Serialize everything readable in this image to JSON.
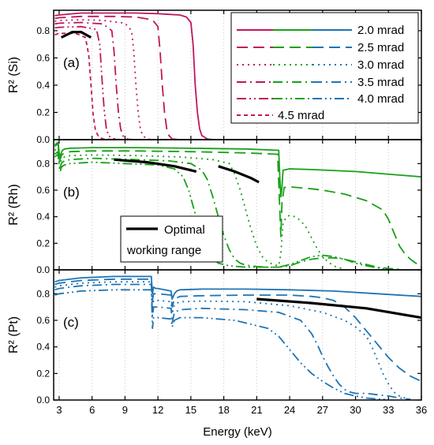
{
  "chart_data": {
    "type": "line",
    "xlabel": "Energy (keV)",
    "xlim": [
      2.5,
      36
    ],
    "xticks": [
      3,
      6,
      9,
      12,
      15,
      18,
      21,
      24,
      27,
      30,
      33,
      36
    ],
    "grid_x": true,
    "grid_y": false,
    "colors": {
      "Si": "#c0175d",
      "Rh": "#18a018",
      "Pt": "#1f74b4",
      "optimal": "#000000"
    },
    "legend": {
      "placement": "panel-a top-right",
      "entries": [
        "2.0 mrad",
        "2.5 mrad",
        "3.0 mrad",
        "3.5 mrad",
        "4.0 mrad",
        "4.5 mrad"
      ],
      "optimal_label_line1": "Optimal",
      "optimal_label_line2": "working range"
    },
    "panels": [
      {
        "label": "(a)",
        "ylabel": "R² (Si)",
        "ylim": [
          0,
          0.95
        ],
        "yticks": [
          0.0,
          0.2,
          0.4,
          0.6,
          0.8
        ],
        "color": "#c0175d",
        "series": [
          {
            "name": "2.0 mrad",
            "dash": "solid",
            "x": [
              2.6,
              3,
              5,
              8,
              10,
              12,
              13,
              14,
              14.6,
              15.0,
              15.2,
              15.4,
              15.6,
              15.8,
              16.0,
              16.5,
              17,
              20,
              36
            ],
            "y": [
              0.91,
              0.915,
              0.93,
              0.93,
              0.93,
              0.925,
              0.92,
              0.915,
              0.9,
              0.86,
              0.7,
              0.4,
              0.2,
              0.08,
              0.03,
              0.005,
              0,
              0,
              0
            ]
          },
          {
            "name": "2.5 mrad",
            "dash": "dash",
            "x": [
              2.6,
              3,
              5,
              8,
              10,
              11.5,
              12.0,
              12.2,
              12.4,
              12.6,
              12.8,
              13.0,
              13.3,
              14,
              36
            ],
            "y": [
              0.89,
              0.895,
              0.905,
              0.905,
              0.9,
              0.88,
              0.83,
              0.65,
              0.4,
              0.2,
              0.08,
              0.03,
              0.005,
              0,
              0
            ]
          },
          {
            "name": "3.0 mrad",
            "dash": "dot",
            "x": [
              2.6,
              3,
              5,
              7,
              9.0,
              9.6,
              9.8,
              10.0,
              10.2,
              10.4,
              10.6,
              11.0,
              11.5,
              36
            ],
            "y": [
              0.87,
              0.875,
              0.88,
              0.875,
              0.855,
              0.8,
              0.65,
              0.4,
              0.2,
              0.08,
              0.03,
              0.005,
              0,
              0
            ]
          },
          {
            "name": "3.5 mrad",
            "dash": "dashdot",
            "x": [
              2.6,
              3,
              5,
              7,
              7.8,
              8.0,
              8.2,
              8.4,
              8.6,
              8.8,
              9.0,
              9.4,
              10,
              36
            ],
            "y": [
              0.85,
              0.855,
              0.86,
              0.85,
              0.8,
              0.65,
              0.4,
              0.2,
              0.08,
              0.03,
              0.01,
              0.002,
              0,
              0
            ]
          },
          {
            "name": "4.0 mrad",
            "dash": "dashdotdot",
            "x": [
              2.6,
              3,
              5,
              6.4,
              6.7,
              6.9,
              7.1,
              7.3,
              7.5,
              7.8,
              8.2,
              9,
              36
            ],
            "y": [
              0.82,
              0.825,
              0.83,
              0.81,
              0.7,
              0.45,
              0.22,
              0.08,
              0.03,
              0.01,
              0.002,
              0,
              0
            ]
          },
          {
            "name": "4.5 mrad",
            "dash": "shortdash",
            "x": [
              2.6,
              3,
              4.5,
              5.4,
              5.7,
              5.9,
              6.1,
              6.3,
              6.6,
              7.0,
              8,
              36
            ],
            "y": [
              0.77,
              0.78,
              0.78,
              0.75,
              0.62,
              0.4,
              0.18,
              0.07,
              0.02,
              0.005,
              0,
              0
            ]
          }
        ],
        "optimal": [
          {
            "x": [
              3.2,
              4.2,
              5.0,
              5.9
            ],
            "y": [
              0.75,
              0.79,
              0.79,
              0.75
            ]
          }
        ]
      },
      {
        "label": "(b)",
        "ylabel": "R² (Rh)",
        "ylim": [
          0,
          0.98
        ],
        "yticks": [
          0.0,
          0.2,
          0.4,
          0.6,
          0.8
        ],
        "color": "#18a018",
        "series": [
          {
            "name": "2.0 mrad",
            "dash": "solid",
            "x": [
              2.6,
              2.9,
              3.0,
              3.1,
              3.2,
              3.3,
              3.5,
              4,
              6,
              10,
              15,
              20,
              23.0,
              23.1,
              23.2,
              23.3,
              23.4,
              24,
              26,
              30,
              36
            ],
            "y": [
              0.94,
              0.96,
              0.88,
              0.85,
              0.88,
              0.9,
              0.91,
              0.915,
              0.92,
              0.92,
              0.915,
              0.91,
              0.9,
              0.7,
              0.55,
              0.62,
              0.75,
              0.76,
              0.755,
              0.74,
              0.7
            ]
          },
          {
            "name": "2.5 mrad",
            "dash": "dash",
            "x": [
              2.6,
              2.9,
              3.0,
              3.1,
              3.2,
              3.3,
              3.5,
              4,
              6,
              10,
              15,
              20,
              22.9,
              23.1,
              23.2,
              23.3,
              23.5,
              24,
              26,
              27,
              29,
              31,
              32.5,
              33,
              33.5,
              34,
              34.5,
              35,
              35.5,
              36
            ],
            "y": [
              0.93,
              0.95,
              0.86,
              0.83,
              0.86,
              0.87,
              0.88,
              0.89,
              0.895,
              0.895,
              0.89,
              0.88,
              0.87,
              0.45,
              0.25,
              0.5,
              0.62,
              0.625,
              0.61,
              0.6,
              0.57,
              0.52,
              0.45,
              0.38,
              0.28,
              0.18,
              0.12,
              0.08,
              0.05,
              0.03
            ]
          },
          {
            "name": "3.0 mrad",
            "dash": "dot",
            "x": [
              2.6,
              2.9,
              3.0,
              3.1,
              3.2,
              3.3,
              3.5,
              4,
              6,
              10,
              14,
              17,
              18.5,
              19.0,
              19.5,
              20.0,
              20.5,
              21.0,
              21.5,
              22,
              22.5,
              23,
              23.2,
              23.4,
              23.7,
              24,
              24.5,
              25,
              25.5,
              26,
              26.5,
              27,
              27.5,
              28,
              28.5,
              29
            ],
            "y": [
              0.9,
              0.92,
              0.84,
              0.8,
              0.83,
              0.84,
              0.85,
              0.86,
              0.865,
              0.86,
              0.85,
              0.83,
              0.8,
              0.72,
              0.6,
              0.45,
              0.3,
              0.18,
              0.1,
              0.06,
              0.04,
              0.03,
              0.12,
              0.35,
              0.4,
              0.41,
              0.4,
              0.37,
              0.32,
              0.24,
              0.16,
              0.1,
              0.06,
              0.03,
              0.015,
              0.01
            ]
          },
          {
            "name": "3.5 mrad",
            "dash": "dashdot",
            "x": [
              2.6,
              2.9,
              3.0,
              3.1,
              3.2,
              3.3,
              3.5,
              4,
              6,
              10,
              13,
              15,
              16.0,
              16.5,
              17.0,
              17.5,
              18.0,
              18.5,
              19,
              19.5,
              20,
              21,
              22,
              23,
              24,
              25,
              26,
              27,
              28,
              29,
              30,
              31,
              32,
              33,
              34
            ],
            "y": [
              0.87,
              0.89,
              0.81,
              0.77,
              0.8,
              0.81,
              0.82,
              0.83,
              0.84,
              0.83,
              0.82,
              0.8,
              0.75,
              0.68,
              0.55,
              0.4,
              0.26,
              0.15,
              0.08,
              0.05,
              0.035,
              0.025,
              0.02,
              0.02,
              0.03,
              0.06,
              0.08,
              0.09,
              0.09,
              0.08,
              0.06,
              0.04,
              0.02,
              0.01,
              0.005
            ]
          },
          {
            "name": "4.0 mrad",
            "dash": "dashdotdot",
            "x": [
              2.6,
              2.9,
              3.0,
              3.1,
              3.2,
              3.3,
              3.5,
              4,
              6,
              9,
              12,
              13.5,
              14.3,
              14.8,
              15.3,
              15.8,
              16.3,
              16.8,
              17.5,
              18.5,
              20,
              22,
              23,
              24,
              25,
              26,
              27,
              28,
              29,
              30,
              31,
              32,
              33
            ],
            "y": [
              0.85,
              0.87,
              0.78,
              0.74,
              0.77,
              0.78,
              0.79,
              0.8,
              0.81,
              0.8,
              0.79,
              0.76,
              0.7,
              0.6,
              0.45,
              0.3,
              0.18,
              0.1,
              0.05,
              0.03,
              0.02,
              0.02,
              0.02,
              0.04,
              0.07,
              0.1,
              0.11,
              0.1,
              0.08,
              0.05,
              0.03,
              0.015,
              0.005
            ]
          }
        ],
        "optimal": [
          {
            "x": [
              8,
              11,
              13.5,
              15.5
            ],
            "y": [
              0.83,
              0.81,
              0.78,
              0.74
            ]
          },
          {
            "x": [
              17.5,
              19,
              20.5,
              21.2
            ],
            "y": [
              0.78,
              0.74,
              0.69,
              0.66
            ]
          }
        ]
      },
      {
        "label": "(c)",
        "ylabel": "R² (Pt)",
        "ylim": [
          0,
          0.98
        ],
        "yticks": [
          0.0,
          0.2,
          0.4,
          0.6,
          0.8
        ],
        "color": "#1f74b4",
        "series": [
          {
            "name": "2.0 mrad",
            "dash": "solid",
            "x": [
              2.6,
              3,
              5,
              8,
              11.4,
              11.5,
              11.6,
              11.8,
              12,
              13.2,
              13.3,
              13.5,
              13.7,
              14,
              16,
              20,
              24,
              28,
              32,
              36
            ],
            "y": [
              0.89,
              0.9,
              0.92,
              0.93,
              0.93,
              0.8,
              0.85,
              0.84,
              0.84,
              0.82,
              0.76,
              0.8,
              0.82,
              0.83,
              0.835,
              0.835,
              0.83,
              0.82,
              0.8,
              0.78
            ]
          },
          {
            "name": "2.5 mrad",
            "dash": "dash",
            "x": [
              2.6,
              3,
              5,
              8,
              11.4,
              11.5,
              11.6,
              12,
              13.2,
              13.3,
              13.5,
              14,
              16,
              20,
              24,
              26,
              27,
              28,
              29,
              30,
              31,
              32,
              33,
              34,
              35,
              36
            ],
            "y": [
              0.87,
              0.88,
              0.9,
              0.91,
              0.91,
              0.75,
              0.8,
              0.8,
              0.79,
              0.7,
              0.76,
              0.78,
              0.785,
              0.79,
              0.79,
              0.78,
              0.77,
              0.75,
              0.7,
              0.62,
              0.52,
              0.42,
              0.32,
              0.24,
              0.18,
              0.14
            ]
          },
          {
            "name": "3.0 mrad",
            "dash": "dot",
            "x": [
              2.6,
              3,
              5,
              8,
              11.4,
              11.5,
              11.6,
              12,
              13.2,
              13.3,
              13.5,
              14,
              16,
              20,
              24,
              27,
              29,
              30,
              31,
              31.5,
              32,
              32.5,
              33,
              33.5,
              34,
              34.5,
              35
            ],
            "y": [
              0.85,
              0.86,
              0.88,
              0.89,
              0.89,
              0.7,
              0.75,
              0.75,
              0.74,
              0.65,
              0.72,
              0.74,
              0.745,
              0.74,
              0.71,
              0.66,
              0.6,
              0.55,
              0.48,
              0.4,
              0.3,
              0.2,
              0.12,
              0.06,
              0.03,
              0.015,
              0.005
            ]
          },
          {
            "name": "3.5 mrad",
            "dash": "dashdot",
            "x": [
              2.6,
              3,
              5,
              8,
              11.4,
              11.5,
              11.6,
              12,
              13.2,
              13.3,
              13.5,
              14,
              16,
              20,
              23,
              25,
              26,
              26.5,
              27,
              27.5,
              28,
              28.5,
              29,
              29.5,
              30,
              31,
              32,
              33,
              34,
              35
            ],
            "y": [
              0.83,
              0.84,
              0.86,
              0.87,
              0.87,
              0.63,
              0.7,
              0.7,
              0.69,
              0.58,
              0.66,
              0.68,
              0.69,
              0.68,
              0.66,
              0.6,
              0.5,
              0.42,
              0.33,
              0.25,
              0.18,
              0.12,
              0.08,
              0.06,
              0.05,
              0.05,
              0.04,
              0.03,
              0.015,
              0.005
            ]
          },
          {
            "name": "4.0 mrad",
            "dash": "dashdotdot",
            "x": [
              2.6,
              3,
              5,
              8,
              11.4,
              11.5,
              11.6,
              12,
              13.2,
              13.3,
              13.5,
              14,
              16,
              19,
              22,
              23,
              24,
              25,
              26,
              27,
              28,
              29,
              30,
              31,
              32,
              33
            ],
            "y": [
              0.79,
              0.8,
              0.82,
              0.83,
              0.83,
              0.54,
              0.62,
              0.62,
              0.61,
              0.55,
              0.6,
              0.62,
              0.62,
              0.6,
              0.54,
              0.48,
              0.38,
              0.28,
              0.2,
              0.14,
              0.09,
              0.05,
              0.03,
              0.015,
              0.008,
              0.003
            ]
          }
        ],
        "optimal": [
          {
            "x": [
              21,
              26,
              31,
              36
            ],
            "y": [
              0.76,
              0.73,
              0.69,
              0.62
            ]
          }
        ]
      }
    ]
  }
}
